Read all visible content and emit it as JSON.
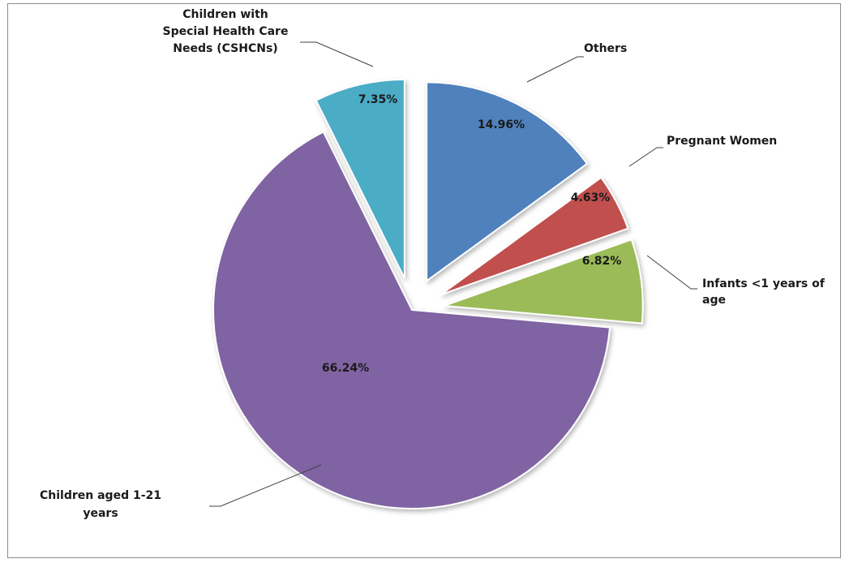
{
  "chart_data": {
    "type": "pie",
    "exploded": true,
    "slices": [
      {
        "name": "Others",
        "value": 14.96,
        "label": "14.96%",
        "color": "#4f81bd"
      },
      {
        "name": "Pregnant Women",
        "value": 4.63,
        "label": "4.63%",
        "color": "#c0504d"
      },
      {
        "name": "Infants <1 years of age",
        "value": 6.82,
        "label": "6.82%",
        "color": "#9bbb59"
      },
      {
        "name": "Children aged 1-21 years",
        "value": 66.24,
        "label": "66.24%",
        "color": "#8064a2"
      },
      {
        "name": "Children with Special Health Care Needs (CSHCNs)",
        "value": 7.35,
        "label": "7.35%",
        "color": "#4bacc6"
      }
    ],
    "category_labels": [
      [
        "Others"
      ],
      [
        "Pregnant Women"
      ],
      [
        "Infants <1 years of",
        "age"
      ],
      [
        "Children aged 1-21",
        "years"
      ],
      [
        "Children with",
        "Special Health Care",
        "Needs (CSHCNs)"
      ]
    ],
    "legend": "none"
  }
}
